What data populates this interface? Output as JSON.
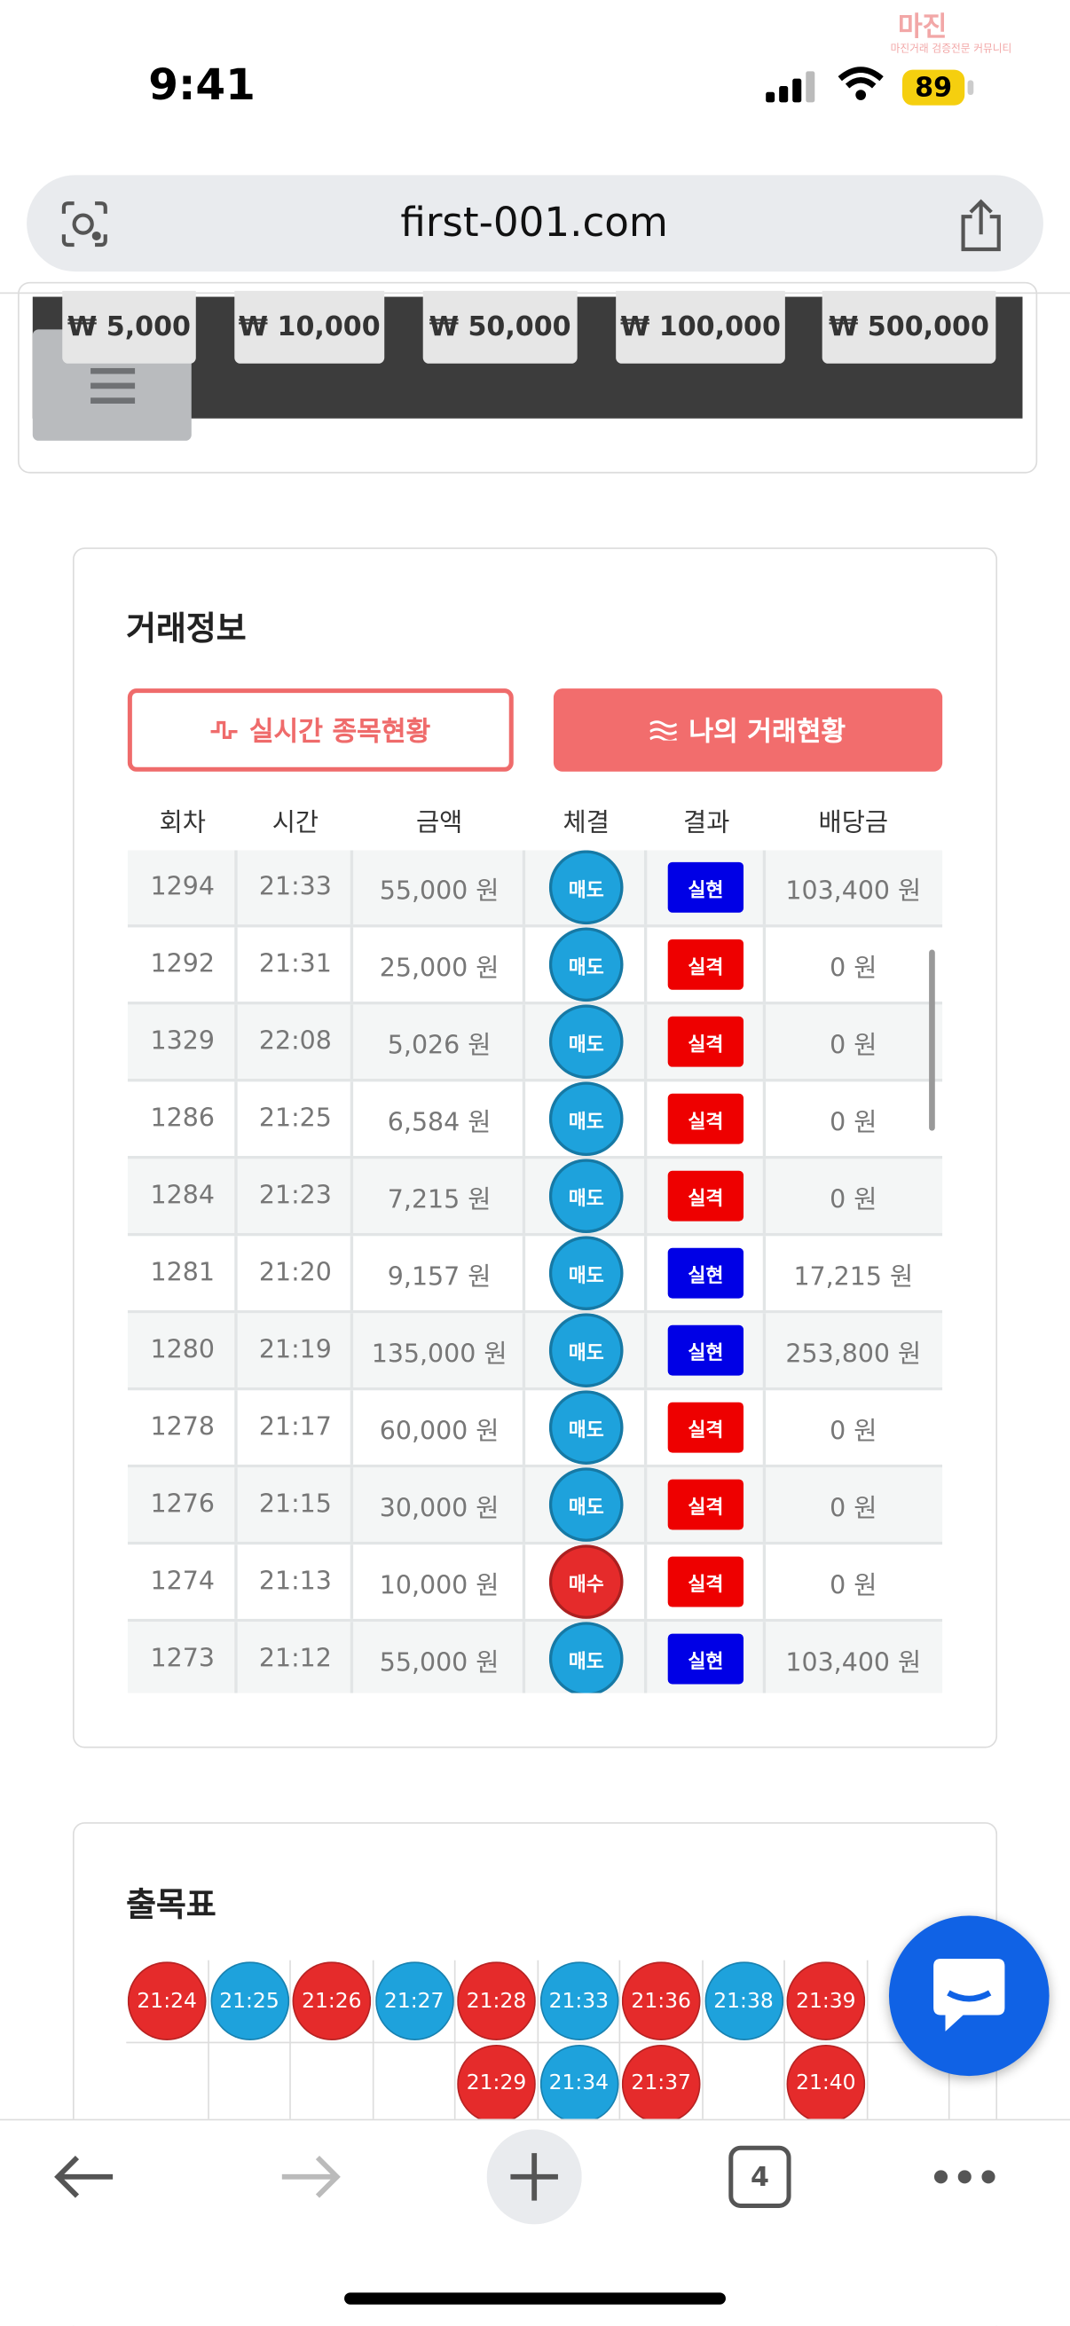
{
  "status": {
    "time": "9:41",
    "battery": "89"
  },
  "watermark": {
    "logo": "마진",
    "tagline": "마진거래 검증전문 커뮤니티"
  },
  "url": "first-001.com",
  "bet_buttons": [
    "₩ 5,000",
    "₩ 10,000",
    "₩ 50,000",
    "₩ 100,000",
    "₩ 500,000"
  ],
  "trade_info": {
    "title": "거래정보",
    "tabs": [
      "실시간 종목현황",
      "나의 거래현황"
    ],
    "table": {
      "headers": [
        "회차",
        "시간",
        "금액",
        "체결",
        "결과",
        "배당금"
      ],
      "rows": [
        {
          "cells": [
            "1294",
            "21:33",
            "55,000 원",
            "매도",
            "실현",
            "103,400 원"
          ],
          "side_color": "#1ea2dc",
          "result_color": "#0000e6"
        },
        {
          "cells": [
            "1292",
            "21:31",
            "25,000 원",
            "매도",
            "실격",
            "0 원"
          ],
          "side_color": "#1ea2dc",
          "result_color": "#ee0000"
        },
        {
          "cells": [
            "1329",
            "22:08",
            "5,026 원",
            "매도",
            "실격",
            "0 원"
          ],
          "side_color": "#1ea2dc",
          "result_color": "#ee0000"
        },
        {
          "cells": [
            "1286",
            "21:25",
            "6,584 원",
            "매도",
            "실격",
            "0 원"
          ],
          "side_color": "#1ea2dc",
          "result_color": "#ee0000"
        },
        {
          "cells": [
            "1284",
            "21:23",
            "7,215 원",
            "매도",
            "실격",
            "0 원"
          ],
          "side_color": "#1ea2dc",
          "result_color": "#ee0000"
        },
        {
          "cells": [
            "1281",
            "21:20",
            "9,157 원",
            "매도",
            "실현",
            "17,215 원"
          ],
          "side_color": "#1ea2dc",
          "result_color": "#0000e6"
        },
        {
          "cells": [
            "1280",
            "21:19",
            "135,000 원",
            "매도",
            "실현",
            "253,800 원"
          ],
          "side_color": "#1ea2dc",
          "result_color": "#0000e6"
        },
        {
          "cells": [
            "1278",
            "21:17",
            "60,000 원",
            "매도",
            "실격",
            "0 원"
          ],
          "side_color": "#1ea2dc",
          "result_color": "#ee0000"
        },
        {
          "cells": [
            "1276",
            "21:15",
            "30,000 원",
            "매도",
            "실격",
            "0 원"
          ],
          "side_color": "#1ea2dc",
          "result_color": "#ee0000"
        },
        {
          "cells": [
            "1274",
            "21:13",
            "10,000 원",
            "매수",
            "실격",
            "0 원"
          ],
          "side_color": "#e52b2b",
          "result_color": "#ee0000"
        },
        {
          "cells": [
            "1273",
            "21:12",
            "55,000 원",
            "매도",
            "실현",
            "103,400 원"
          ],
          "side_color": "#1ea2dc",
          "result_color": "#0000e6"
        }
      ]
    }
  },
  "results_board": {
    "title": "출목표",
    "cells": [
      {
        "label": "21:24",
        "col": 0,
        "row": 0,
        "color": "#e52b2b"
      },
      {
        "label": "21:25",
        "col": 1,
        "row": 0,
        "color": "#1ea2dc"
      },
      {
        "label": "21:26",
        "col": 2,
        "row": 0,
        "color": "#e52b2b"
      },
      {
        "label": "21:27",
        "col": 3,
        "row": 0,
        "color": "#1ea2dc"
      },
      {
        "label": "21:28",
        "col": 4,
        "row": 0,
        "color": "#e52b2b"
      },
      {
        "label": "21:33",
        "col": 5,
        "row": 0,
        "color": "#1ea2dc"
      },
      {
        "label": "21:36",
        "col": 6,
        "row": 0,
        "color": "#e52b2b"
      },
      {
        "label": "21:38",
        "col": 7,
        "row": 0,
        "color": "#1ea2dc"
      },
      {
        "label": "21:39",
        "col": 8,
        "row": 0,
        "color": "#e52b2b"
      },
      {
        "label": "21:29",
        "col": 4,
        "row": 1,
        "color": "#e52b2b"
      },
      {
        "label": "21:34",
        "col": 5,
        "row": 1,
        "color": "#1ea2dc"
      },
      {
        "label": "21:37",
        "col": 6,
        "row": 1,
        "color": "#e52b2b"
      },
      {
        "label": "21:40",
        "col": 8,
        "row": 1,
        "color": "#e52b2b"
      }
    ]
  },
  "toolbar": {
    "tab_count": "4"
  }
}
